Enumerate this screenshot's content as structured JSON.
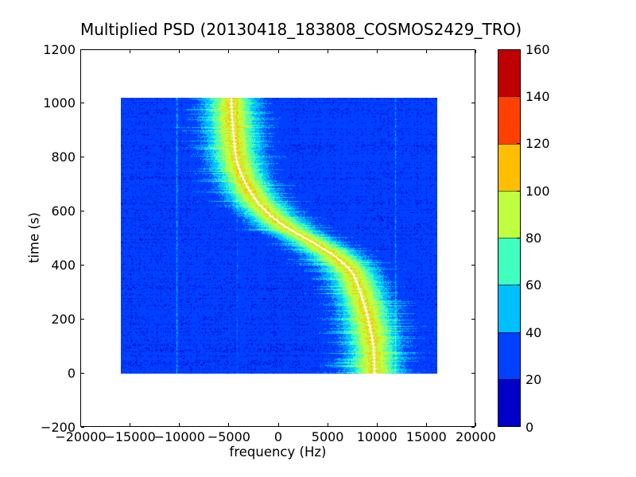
{
  "figure": {
    "background": "#ffffff"
  },
  "chart_data": {
    "type": "heatmap",
    "title": "Multiplied PSD (20130418_183808_COSMOS2429_TRO)",
    "xlabel": "frequency (Hz)",
    "ylabel": "time (s)",
    "xlim": [
      -20000,
      20000
    ],
    "ylim": [
      -200,
      1200
    ],
    "grid": false,
    "x_ticks": {
      "values": [
        -20000,
        -15000,
        -10000,
        -5000,
        0,
        5000,
        10000,
        15000,
        20000
      ],
      "labels": [
        "−20000",
        "−15000",
        "−10000",
        "−5000",
        "0",
        "5000",
        "10000",
        "15000",
        "20000"
      ]
    },
    "y_ticks": {
      "values": [
        -200,
        0,
        200,
        400,
        600,
        800,
        1000,
        1200
      ],
      "labels": [
        "−200",
        "0",
        "200",
        "400",
        "600",
        "800",
        "1000",
        "1200"
      ]
    },
    "extent": {
      "freq_hz": [
        -16000,
        16000
      ],
      "time_s": [
        0,
        1024
      ]
    },
    "background_psd": 27,
    "peak_psd": 100,
    "band_sigma_hz": 2500,
    "doppler_trace": {
      "name": "doppler-centroid",
      "color": "#ffffff",
      "points": [
        [
          0,
          9660
        ],
        [
          110,
          9500
        ],
        [
          224,
          8880
        ],
        [
          310,
          8160
        ],
        [
          380,
          7300
        ],
        [
          440,
          5500
        ],
        [
          490,
          3300
        ],
        [
          540,
          900
        ],
        [
          585,
          -800
        ],
        [
          635,
          -2150
        ],
        [
          700,
          -3300
        ],
        [
          778,
          -4200
        ],
        [
          882,
          -4600
        ],
        [
          1024,
          -4830
        ]
      ]
    },
    "interference_lines": [
      {
        "freq_hz": -10400,
        "amp": 16
      },
      {
        "freq_hz": -4270,
        "amp": 9
      },
      {
        "freq_hz": 11700,
        "amp": 12
      }
    ],
    "colorbar": {
      "position": "right",
      "levels": [
        0,
        20,
        40,
        60,
        80,
        100,
        120,
        140,
        160
      ],
      "tick_labels": [
        "0",
        "20",
        "40",
        "60",
        "80",
        "100",
        "120",
        "140",
        "160"
      ],
      "colors": [
        "#0000C8",
        "#0040FF",
        "#00BFFF",
        "#40FFBF",
        "#BFFF40",
        "#FFBF00",
        "#FF4000",
        "#BF0000"
      ]
    }
  }
}
